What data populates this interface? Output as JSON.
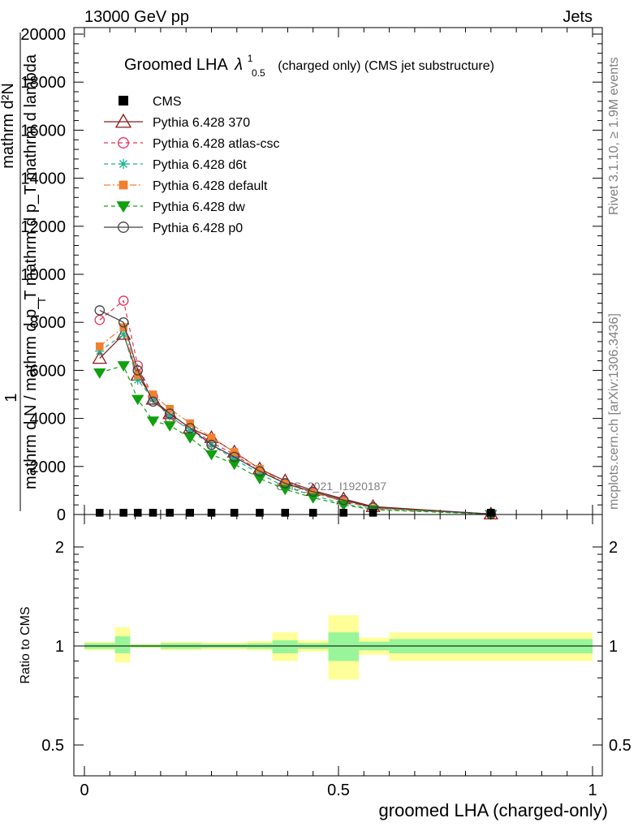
{
  "header": {
    "left": "13000 GeV pp",
    "right": "Jets"
  },
  "side_labels": {
    "rivet": "Rivet 3.1.10, ≥ 1.9M events",
    "mcplots": "mcplots.cern.ch [arXiv:1306.3436]"
  },
  "watermark": "CMS_2021_I1920187",
  "chart_data": [
    {
      "type": "line",
      "panel": "main",
      "title": "Groomed LHA",
      "title_symbol": "λ",
      "title_sup": "1",
      "title_sub": "0.5",
      "title_suffix": "(charged only) (CMS jet substructure)",
      "ylabel_top": "1",
      "ylabel_num": "mathrm d²N",
      "ylabel_den": "mathrm d N / mathrm d p_T mathrm d p_T mathrm d lambda",
      "ylabel_tsub": "T",
      "xlim": [
        0,
        1
      ],
      "ylim": [
        0,
        20000
      ],
      "yticks": [
        0,
        2000,
        4000,
        6000,
        8000,
        10000,
        12000,
        14000,
        16000,
        18000,
        20000
      ],
      "ytick_labels": [
        "0",
        "2000",
        "4000",
        "6000",
        "8000",
        "10000",
        "12000",
        "14000",
        "16000",
        "18000",
        "20000"
      ],
      "legend_position": "top-left",
      "x": [
        0.03,
        0.077,
        0.105,
        0.135,
        0.168,
        0.208,
        0.25,
        0.295,
        0.345,
        0.395,
        0.45,
        0.51,
        0.568,
        0.8
      ],
      "cms": {
        "name": "CMS",
        "color": "#000000",
        "values": [
          6,
          6,
          6,
          6,
          6,
          6,
          6,
          6,
          6,
          6,
          6,
          6,
          6,
          6
        ]
      },
      "series": [
        {
          "name": "Pythia 6.428 370",
          "color": "#8b1a1a",
          "marker": "triangle-open",
          "dash": "solid",
          "values": [
            6500,
            7500,
            5800,
            4800,
            4200,
            3600,
            3200,
            2600,
            1900,
            1400,
            1000,
            650,
            330,
            20
          ]
        },
        {
          "name": "Pythia 6.428 atlas-csc",
          "color": "#e8305a",
          "marker": "circle-open",
          "dash": "dashed",
          "values": [
            8100,
            8900,
            6200,
            4900,
            4000,
            3600,
            3000,
            2500,
            1800,
            1300,
            900,
            550,
            280,
            20
          ]
        },
        {
          "name": "Pythia 6.428 d6t",
          "color": "#20b090",
          "marker": "star",
          "dash": "dashed",
          "values": [
            6800,
            7500,
            5600,
            4800,
            4100,
            3500,
            2900,
            2300,
            1700,
            1150,
            800,
            450,
            220,
            15
          ]
        },
        {
          "name": "Pythia 6.428 default",
          "color": "#f08030",
          "marker": "square-filled",
          "dash": "dashdot",
          "values": [
            7000,
            7800,
            5800,
            5000,
            4400,
            3800,
            3200,
            2600,
            1900,
            1300,
            900,
            550,
            260,
            18
          ]
        },
        {
          "name": "Pythia 6.428 dw",
          "color": "#10a010",
          "marker": "triangle-down-filled",
          "dash": "dashed",
          "values": [
            5900,
            6200,
            4800,
            3900,
            3700,
            3200,
            2500,
            2100,
            1500,
            1050,
            700,
            400,
            200,
            12
          ]
        },
        {
          "name": "Pythia 6.428 p0",
          "color": "#404040",
          "marker": "circle-open",
          "dash": "solid",
          "values": [
            8500,
            8000,
            6000,
            4700,
            4200,
            3600,
            2900,
            2400,
            1800,
            1300,
            950,
            600,
            300,
            20
          ]
        }
      ]
    },
    {
      "type": "area",
      "panel": "ratio",
      "ylabel": "Ratio to CMS",
      "xlabel": "groomed LHA (charged-only)",
      "xlim": [
        0,
        1
      ],
      "ylim": [
        0.4,
        2.4
      ],
      "yscale": "log",
      "xticks": [
        0,
        0.5,
        1
      ],
      "xtick_labels": [
        "0",
        "0.5",
        "1"
      ],
      "yticks": [
        0.5,
        1,
        2
      ],
      "ytick_labels": [
        "0.5",
        "1",
        "2"
      ],
      "reference": 1,
      "inner_band_color": "#99f599",
      "outer_band_color": "#ffff99",
      "bins": [
        {
          "lo": 0.0,
          "hi": 0.06,
          "inner": [
            0.98,
            1.02
          ],
          "outer": [
            0.97,
            1.03
          ]
        },
        {
          "lo": 0.06,
          "hi": 0.09,
          "inner": [
            0.95,
            1.07
          ],
          "outer": [
            0.89,
            1.14
          ]
        },
        {
          "lo": 0.09,
          "hi": 0.15,
          "inner": [
            0.99,
            1.01
          ],
          "outer": [
            0.985,
            1.015
          ]
        },
        {
          "lo": 0.15,
          "hi": 0.23,
          "inner": [
            0.98,
            1.02
          ],
          "outer": [
            0.97,
            1.03
          ]
        },
        {
          "lo": 0.23,
          "hi": 0.32,
          "inner": [
            0.985,
            1.015
          ],
          "outer": [
            0.975,
            1.025
          ]
        },
        {
          "lo": 0.32,
          "hi": 0.37,
          "inner": [
            0.98,
            1.02
          ],
          "outer": [
            0.97,
            1.035
          ]
        },
        {
          "lo": 0.37,
          "hi": 0.42,
          "inner": [
            0.95,
            1.04
          ],
          "outer": [
            0.9,
            1.1
          ]
        },
        {
          "lo": 0.42,
          "hi": 0.48,
          "inner": [
            0.98,
            1.02
          ],
          "outer": [
            0.96,
            1.04
          ]
        },
        {
          "lo": 0.48,
          "hi": 0.54,
          "inner": [
            0.9,
            1.1
          ],
          "outer": [
            0.79,
            1.24
          ]
        },
        {
          "lo": 0.54,
          "hi": 0.6,
          "inner": [
            0.97,
            1.03
          ],
          "outer": [
            0.94,
            1.06
          ]
        },
        {
          "lo": 0.6,
          "hi": 1.0,
          "inner": [
            0.95,
            1.05
          ],
          "outer": [
            0.9,
            1.1
          ]
        }
      ]
    }
  ]
}
